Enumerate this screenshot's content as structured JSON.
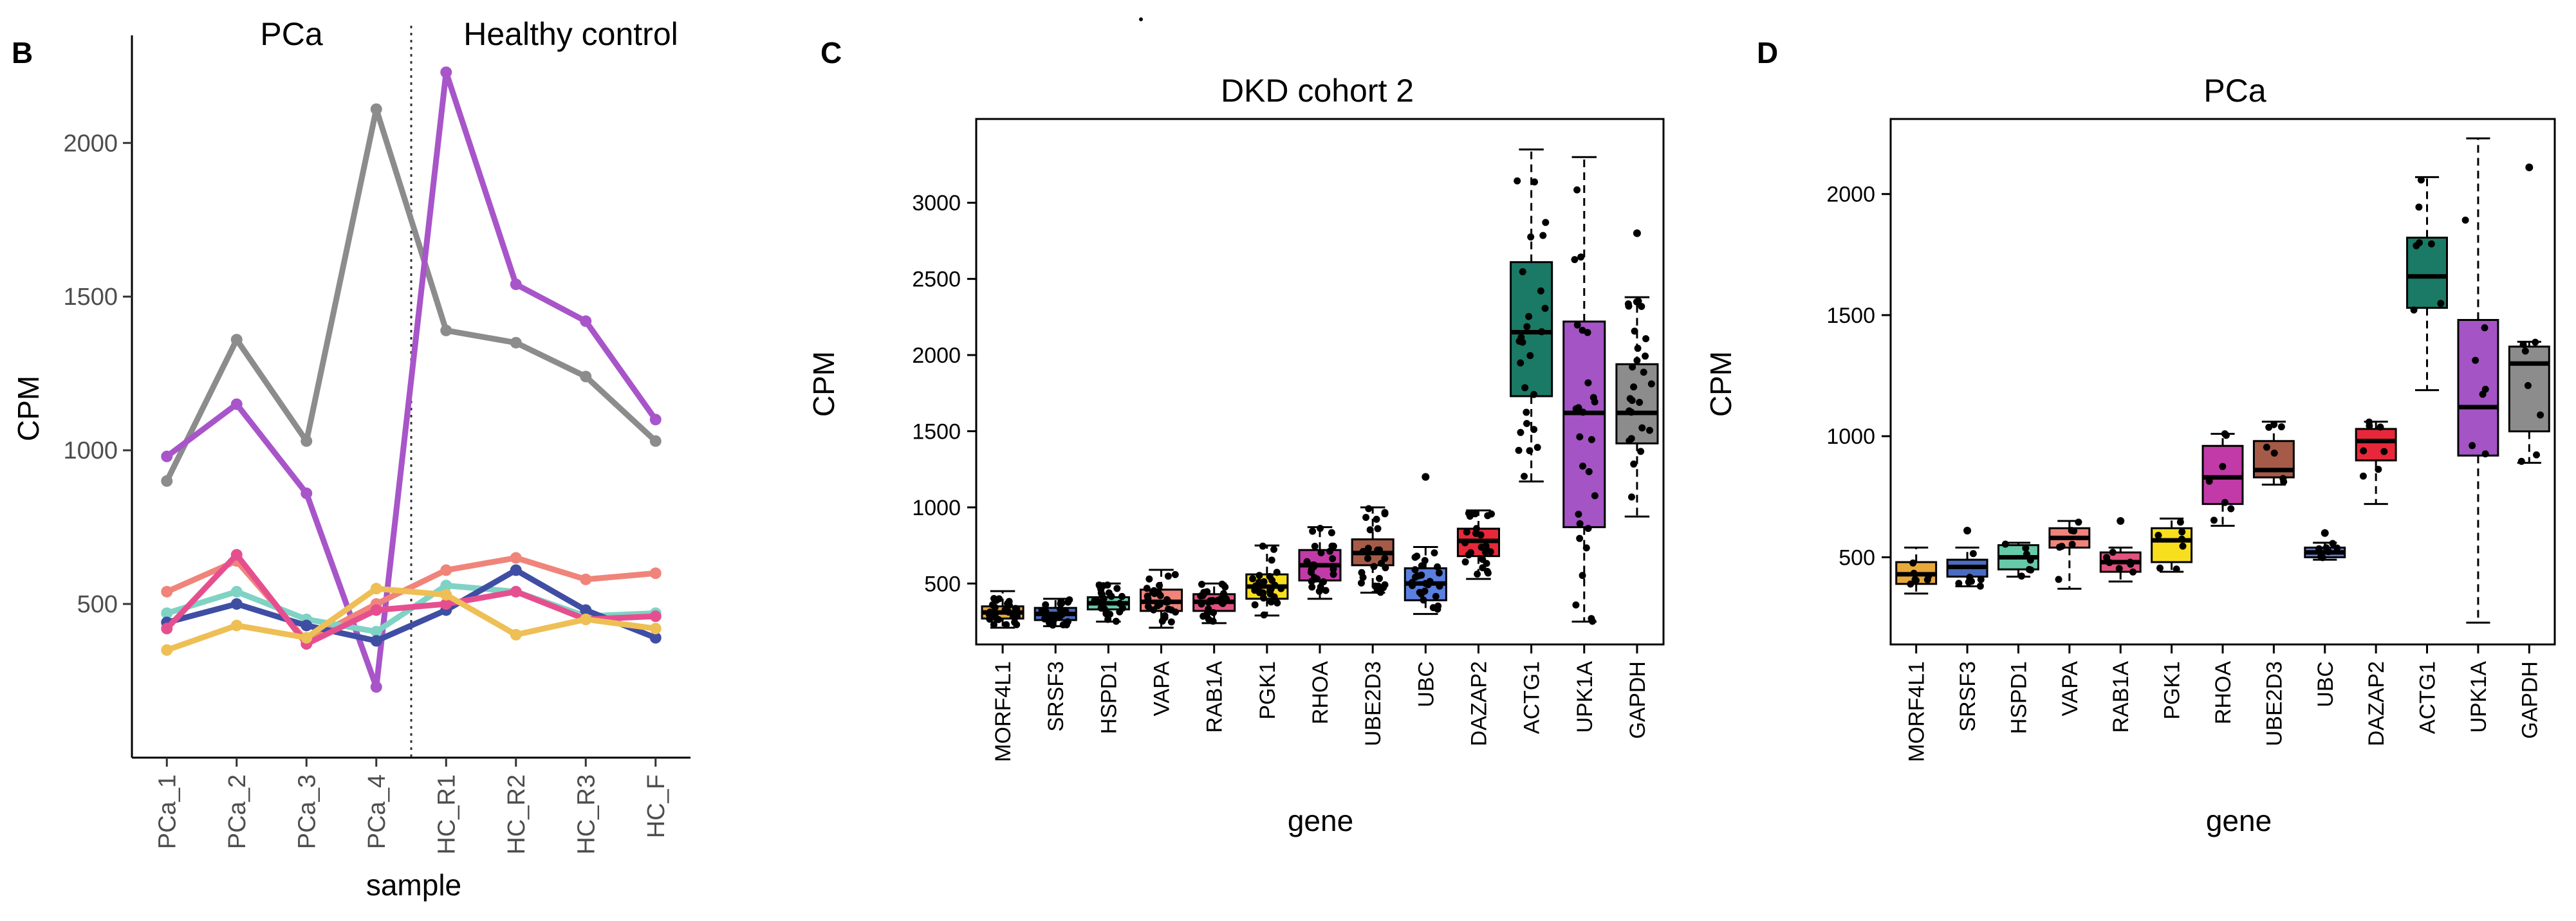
{
  "panels": {
    "B": {
      "letter": "B",
      "xlabel": "sample",
      "ylabel": "CPM",
      "group_left": "PCa",
      "group_right": "Healthy control"
    },
    "C": {
      "letter": "C",
      "title": "DKD cohort 2",
      "xlabel": "gene",
      "ylabel": "CPM"
    },
    "D": {
      "letter": "D",
      "title": "PCa",
      "xlabel": "gene",
      "ylabel": "CPM"
    }
  },
  "chart_data": [
    {
      "id": "B",
      "type": "line",
      "xlabel": "sample",
      "ylabel": "CPM",
      "categories": [
        "PCa_1",
        "PCa_2",
        "PCa_3",
        "PCa_4",
        "HC_R1",
        "HC_R2",
        "HC_R3",
        "HC_F"
      ],
      "ylim": [
        0,
        2350
      ],
      "yticks": [
        500,
        1000,
        1500,
        2000
      ],
      "divider_after_index": 3,
      "series": [
        {
          "name": "grey",
          "color": "#8c8c8c",
          "values": [
            900,
            1360,
            1030,
            2110,
            1390,
            1350,
            1240,
            1030
          ]
        },
        {
          "name": "purple",
          "color": "#a855c9",
          "values": [
            980,
            1150,
            860,
            230,
            2230,
            1540,
            1420,
            1100
          ]
        },
        {
          "name": "salmon",
          "color": "#f0847a",
          "values": [
            540,
            640,
            380,
            500,
            610,
            650,
            580,
            600
          ]
        },
        {
          "name": "teal",
          "color": "#7fd3c4",
          "values": [
            470,
            540,
            450,
            410,
            560,
            540,
            460,
            470
          ]
        },
        {
          "name": "navy",
          "color": "#3f4ea3",
          "values": [
            440,
            500,
            430,
            380,
            480,
            610,
            480,
            390
          ]
        },
        {
          "name": "pink",
          "color": "#e64f8f",
          "values": [
            420,
            660,
            370,
            480,
            500,
            540,
            450,
            460
          ]
        },
        {
          "name": "yellow",
          "color": "#eebf55",
          "values": [
            350,
            430,
            390,
            550,
            530,
            400,
            450,
            420
          ]
        }
      ]
    },
    {
      "id": "C",
      "type": "box",
      "title": "DKD cohort 2",
      "xlabel": "gene",
      "ylabel": "CPM",
      "ylim": [
        100,
        3550
      ],
      "yticks": [
        500,
        1000,
        1500,
        2000,
        2500,
        3000
      ],
      "categories": [
        "MORF4L1",
        "SRSF3",
        "HSPD1",
        "VAPA",
        "RAB1A",
        "PGK1",
        "RHOA",
        "UBE2D3",
        "UBC",
        "DAZAP2",
        "ACTG1",
        "UPK1A",
        "GAPDH"
      ],
      "colors": [
        "#e8a83c",
        "#4a6bc0",
        "#66c9a8",
        "#f0837a",
        "#e2527f",
        "#f7df1e",
        "#c23aa8",
        "#a65a48",
        "#5b7fe0",
        "#e8283a",
        "#1a7a66",
        "#a454c4",
        "#8c8c8c"
      ],
      "boxes": [
        {
          "min": 210,
          "q1": 270,
          "median": 310,
          "q3": 350,
          "max": 450
        },
        {
          "min": 220,
          "q1": 260,
          "median": 300,
          "q3": 340,
          "max": 400
        },
        {
          "min": 250,
          "q1": 330,
          "median": 370,
          "q3": 410,
          "max": 500
        },
        {
          "min": 210,
          "q1": 320,
          "median": 380,
          "q3": 460,
          "max": 590
        },
        {
          "min": 240,
          "q1": 320,
          "median": 380,
          "q3": 430,
          "max": 500
        },
        {
          "min": 290,
          "q1": 400,
          "median": 480,
          "q3": 560,
          "max": 750
        },
        {
          "min": 400,
          "q1": 520,
          "median": 620,
          "q3": 720,
          "max": 870
        },
        {
          "min": 440,
          "q1": 620,
          "median": 700,
          "q3": 790,
          "max": 1000
        },
        {
          "min": 300,
          "q1": 390,
          "median": 500,
          "q3": 600,
          "max": 740
        },
        {
          "min": 530,
          "q1": 680,
          "median": 780,
          "q3": 860,
          "max": 980
        },
        {
          "min": 1170,
          "q1": 1730,
          "median": 2150,
          "q3": 2610,
          "max": 3350
        },
        {
          "min": 250,
          "q1": 870,
          "median": 1620,
          "q3": 2220,
          "max": 3300
        },
        {
          "min": 940,
          "q1": 1420,
          "median": 1620,
          "q3": 1940,
          "max": 2380
        }
      ],
      "outliers": [
        {
          "category": "UBC",
          "values": [
            1200
          ]
        },
        {
          "category": "GAPDH",
          "values": [
            2800
          ]
        }
      ]
    },
    {
      "id": "D",
      "type": "box",
      "title": "PCa",
      "xlabel": "gene",
      "ylabel": "CPM",
      "ylim": [
        140,
        2310
      ],
      "yticks": [
        500,
        1000,
        1500,
        2000
      ],
      "categories": [
        "MORF4L1",
        "SRSF3",
        "HSPD1",
        "VAPA",
        "RAB1A",
        "PGK1",
        "RHOA",
        "UBE2D3",
        "UBC",
        "DAZAP2",
        "ACTG1",
        "UPK1A",
        "GAPDH"
      ],
      "colors": [
        "#e8a83c",
        "#4a6bc0",
        "#66c9a8",
        "#f0837a",
        "#e2527f",
        "#f7df1e",
        "#c23aa8",
        "#a65a48",
        "#5b7fe0",
        "#e8283a",
        "#1a7a66",
        "#a454c4",
        "#8c8c8c"
      ],
      "boxes": [
        {
          "min": 350,
          "q1": 390,
          "median": 430,
          "q3": 480,
          "max": 540
        },
        {
          "min": 380,
          "q1": 420,
          "median": 460,
          "q3": 490,
          "max": 540
        },
        {
          "min": 420,
          "q1": 450,
          "median": 500,
          "q3": 550,
          "max": 560
        },
        {
          "min": 370,
          "q1": 540,
          "median": 580,
          "q3": 620,
          "max": 650
        },
        {
          "min": 400,
          "q1": 440,
          "median": 480,
          "q3": 520,
          "max": 540
        },
        {
          "min": 440,
          "q1": 480,
          "median": 570,
          "q3": 620,
          "max": 660
        },
        {
          "min": 630,
          "q1": 720,
          "median": 830,
          "q3": 960,
          "max": 1010
        },
        {
          "min": 800,
          "q1": 830,
          "median": 860,
          "q3": 980,
          "max": 1060
        },
        {
          "min": 490,
          "q1": 500,
          "median": 520,
          "q3": 540,
          "max": 560
        },
        {
          "min": 720,
          "q1": 900,
          "median": 980,
          "q3": 1030,
          "max": 1060
        },
        {
          "min": 1190,
          "q1": 1530,
          "median": 1660,
          "q3": 1820,
          "max": 2070
        },
        {
          "min": 230,
          "q1": 920,
          "median": 1120,
          "q3": 1480,
          "max": 2230
        },
        {
          "min": 890,
          "q1": 1020,
          "median": 1300,
          "q3": 1370,
          "max": 1390
        }
      ],
      "outliers": [
        {
          "category": "SRSF3",
          "values": [
            610
          ]
        },
        {
          "category": "RAB1A",
          "values": [
            650
          ]
        },
        {
          "category": "UBC",
          "values": [
            600
          ]
        },
        {
          "category": "GAPDH",
          "values": [
            2110
          ]
        }
      ]
    }
  ]
}
